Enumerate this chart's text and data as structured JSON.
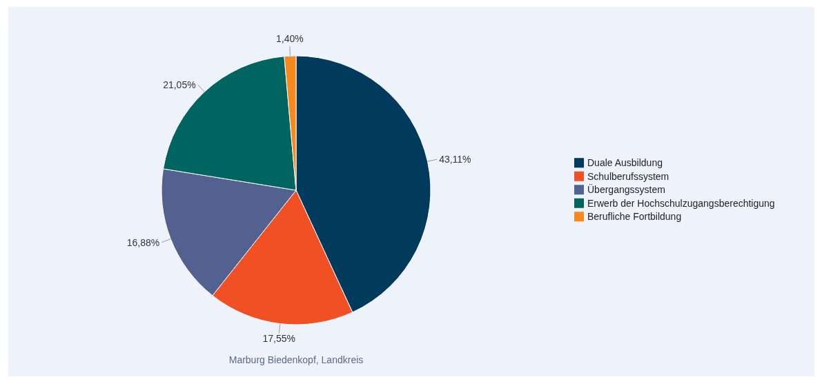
{
  "chart_data": {
    "type": "pie",
    "categories": [
      "Duale Ausbildung",
      "Schulberufssystem",
      "Übergangssystem",
      "Erwerb der Hochschulzugangsberechtigung",
      "Berufliche Fortbildung"
    ],
    "values": [
      43.11,
      17.55,
      16.88,
      21.05,
      1.4
    ],
    "value_labels": [
      "43,11%",
      "17,55%",
      "16,88%",
      "21,05%",
      "1,40%"
    ],
    "colors": [
      "#003a5d",
      "#f05023",
      "#52618f",
      "#006461",
      "#f7891f"
    ],
    "legend": "right",
    "annotations": [
      "Marburg Biedenkopf, Landkreis"
    ]
  }
}
